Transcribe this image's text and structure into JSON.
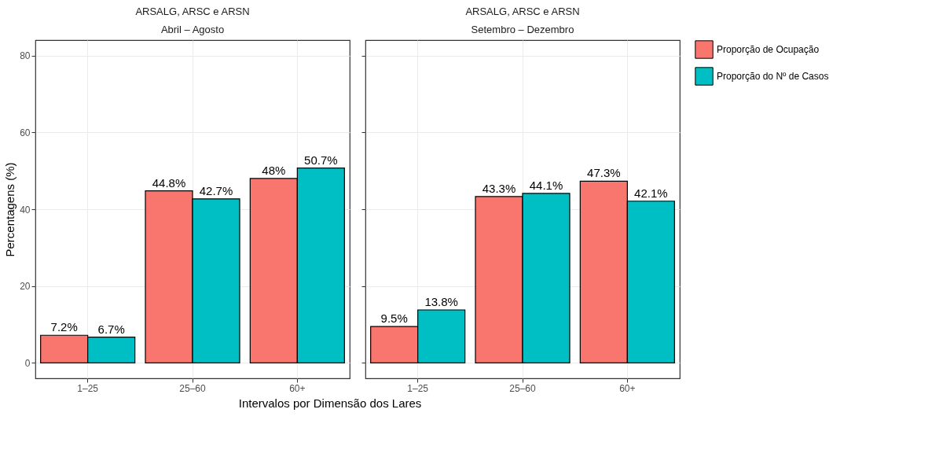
{
  "chart_data": [
    {
      "type": "bar",
      "title": "ARSALG, ARSC e ARSN",
      "subtitle": "Abril – Agosto",
      "xlabel": "Intervalos por Dimensão dos Lares",
      "ylabel": "Percentagens (%)",
      "categories": [
        "1–25",
        "25–60",
        "60+"
      ],
      "series": [
        {
          "name": "Proporção de Ocupação",
          "color": "#f8766d",
          "values": [
            7.2,
            44.8,
            48
          ],
          "value_labels": [
            "7.2%",
            "44.8%",
            "48%"
          ]
        },
        {
          "name": "Proporção do Nº de Casos",
          "color": "#00bfc4",
          "values": [
            6.7,
            42.7,
            50.7
          ],
          "value_labels": [
            "6.7%",
            "42.7%",
            "50.7%"
          ]
        }
      ],
      "ylim": [
        -4,
        84
      ],
      "yticks": [
        0,
        20,
        40,
        60,
        80
      ],
      "grid": true,
      "legend": "right"
    },
    {
      "type": "bar",
      "title": "ARSALG, ARSC e ARSN",
      "subtitle": "Setembro – Dezembro",
      "categories": [
        "1–25",
        "25–60",
        "60+"
      ],
      "series": [
        {
          "name": "Proporção de Ocupação",
          "color": "#f8766d",
          "values": [
            9.5,
            43.3,
            47.3
          ],
          "value_labels": [
            "9.5%",
            "43.3%",
            "47.3%"
          ]
        },
        {
          "name": "Proporção do Nº de Casos",
          "color": "#00bfc4",
          "values": [
            13.8,
            44.1,
            42.1
          ],
          "value_labels": [
            "13.8%",
            "44.1%",
            "42.1%"
          ]
        }
      ],
      "ylim": [
        -4,
        84
      ],
      "yticks": [
        0,
        20,
        40,
        60,
        80
      ],
      "grid": true,
      "legend": "right",
      "tick_labels": "x"
    }
  ]
}
